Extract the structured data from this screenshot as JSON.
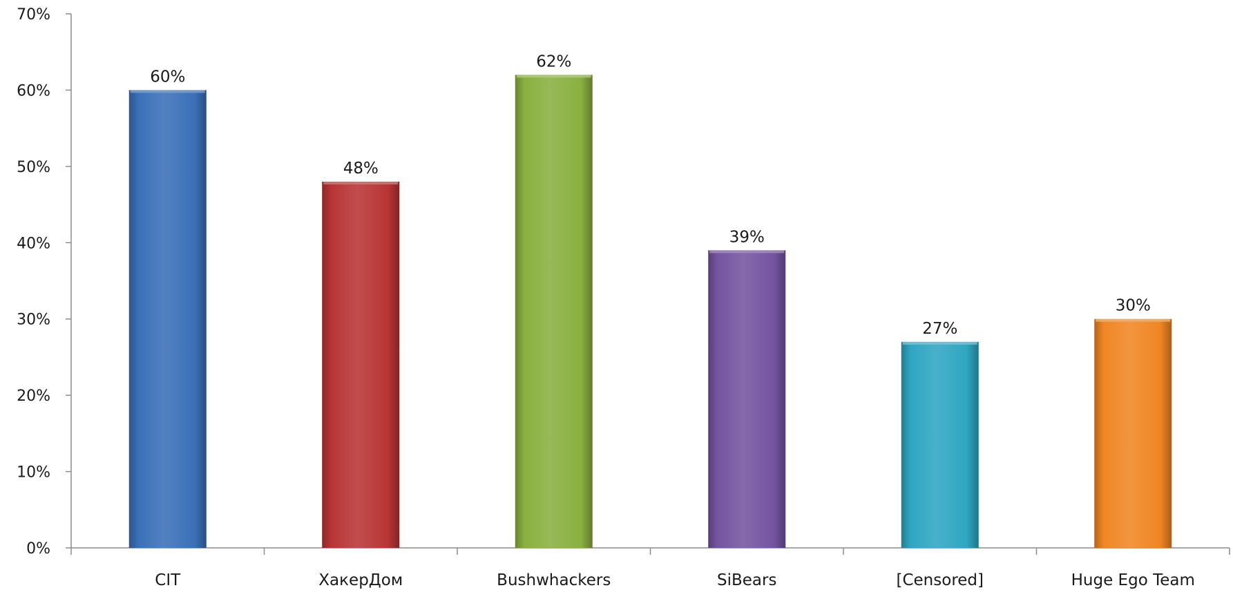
{
  "chart_data": {
    "type": "bar",
    "title": "",
    "xlabel": "",
    "ylabel": "",
    "categories": [
      "CIT",
      "ХакерДом",
      "Bushwhackers",
      "SiBears",
      "[Censored]",
      "Huge Ego Team"
    ],
    "values": [
      60,
      48,
      62,
      39,
      27,
      30
    ],
    "data_labels": [
      "60%",
      "48%",
      "62%",
      "39%",
      "27%",
      "30%"
    ],
    "bar_colors": [
      "#3a70b8",
      "#b93535",
      "#8ab040",
      "#7454a0",
      "#2fa6c2",
      "#f08624"
    ],
    "ylim": [
      0,
      70
    ],
    "yticks": [
      0,
      10,
      20,
      30,
      40,
      50,
      60,
      70
    ],
    "ytick_labels": [
      "0%",
      "10%",
      "20%",
      "30%",
      "40%",
      "50%",
      "60%",
      "70%"
    ],
    "grid": false,
    "legend": "none",
    "axis_color": "#8c8c8c"
  }
}
